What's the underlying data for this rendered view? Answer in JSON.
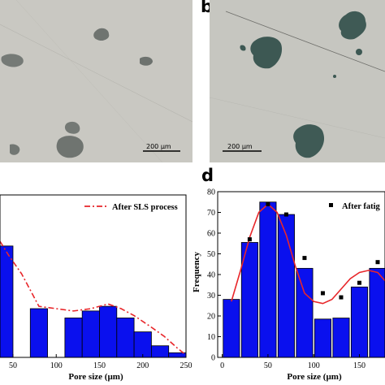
{
  "panels": {
    "b_label": "b",
    "d_label": "d"
  },
  "micrographs": [
    {
      "name": "micrograph-a",
      "scale_bar": "200 µm",
      "background": "#c9c8c2",
      "pore_color": "#6f7470"
    },
    {
      "name": "micrograph-b",
      "scale_bar": "200 µm",
      "background": "#c6c6c0",
      "pore_color": "#3f5a55"
    }
  ],
  "chart_data": [
    {
      "type": "bar",
      "panel": "c",
      "xlabel": "Pore size (µm)",
      "ylabel": "",
      "x_ticks": [
        50,
        100,
        150,
        200,
        250
      ],
      "xlim": [
        35,
        250
      ],
      "ylim": [
        0,
        70
      ],
      "bar_color": "#0a10ee",
      "bar_width": 20,
      "bars": [
        {
          "x": 40,
          "y": 48
        },
        {
          "x": 80,
          "y": 21
        },
        {
          "x": 120,
          "y": 17
        },
        {
          "x": 140,
          "y": 20
        },
        {
          "x": 160,
          "y": 22
        },
        {
          "x": 180,
          "y": 17
        },
        {
          "x": 200,
          "y": 11
        },
        {
          "x": 220,
          "y": 5
        },
        {
          "x": 240,
          "y": 2
        }
      ],
      "series": [
        {
          "name": "After SLS process",
          "style": "dash-dot",
          "color": "#e8262a",
          "x": [
            35,
            45,
            60,
            80,
            100,
            120,
            140,
            150,
            160,
            175,
            190,
            210,
            225,
            240,
            250
          ],
          "y": [
            50,
            44,
            36,
            22,
            21,
            20,
            21,
            22,
            23,
            21,
            18,
            13,
            9,
            4,
            1
          ]
        }
      ],
      "legend": {
        "position": "top-right",
        "entries": [
          "After SLS process"
        ]
      }
    },
    {
      "type": "bar",
      "panel": "d",
      "xlabel": "Pore size (µm)",
      "ylabel": "Frequency",
      "x_ticks": [
        0,
        50,
        100,
        150
      ],
      "y_ticks": [
        0,
        10,
        20,
        30,
        40,
        50,
        60,
        70,
        80
      ],
      "xlim": [
        -5,
        178
      ],
      "ylim": [
        0,
        80
      ],
      "bar_color": "#0a10ee",
      "bar_width": 18,
      "bars": [
        {
          "x": 10,
          "y": 28
        },
        {
          "x": 30,
          "y": 55.5
        },
        {
          "x": 50,
          "y": 75
        },
        {
          "x": 70,
          "y": 69
        },
        {
          "x": 90,
          "y": 43
        },
        {
          "x": 110,
          "y": 18.5
        },
        {
          "x": 130,
          "y": 19
        },
        {
          "x": 150,
          "y": 34
        },
        {
          "x": 170,
          "y": 43
        }
      ],
      "series": [
        {
          "name": "After fatig",
          "style": "markers",
          "color": "#000000",
          "x": [
            30,
            50,
            70,
            90,
            110,
            130,
            150,
            170
          ],
          "y": [
            57,
            74,
            69,
            48,
            31,
            29,
            36,
            46
          ]
        },
        {
          "name": "",
          "style": "line",
          "color": "#e8262a",
          "x": [
            10,
            20,
            30,
            40,
            50,
            60,
            70,
            80,
            90,
            100,
            110,
            120,
            130,
            140,
            150,
            160,
            170,
            178
          ],
          "y": [
            27,
            42,
            58,
            70,
            74,
            70,
            59,
            44,
            31,
            27,
            26,
            28,
            33,
            38,
            41,
            42,
            41,
            37
          ]
        }
      ],
      "legend": {
        "position": "top-right",
        "entries": [
          "After fatig"
        ]
      }
    }
  ]
}
